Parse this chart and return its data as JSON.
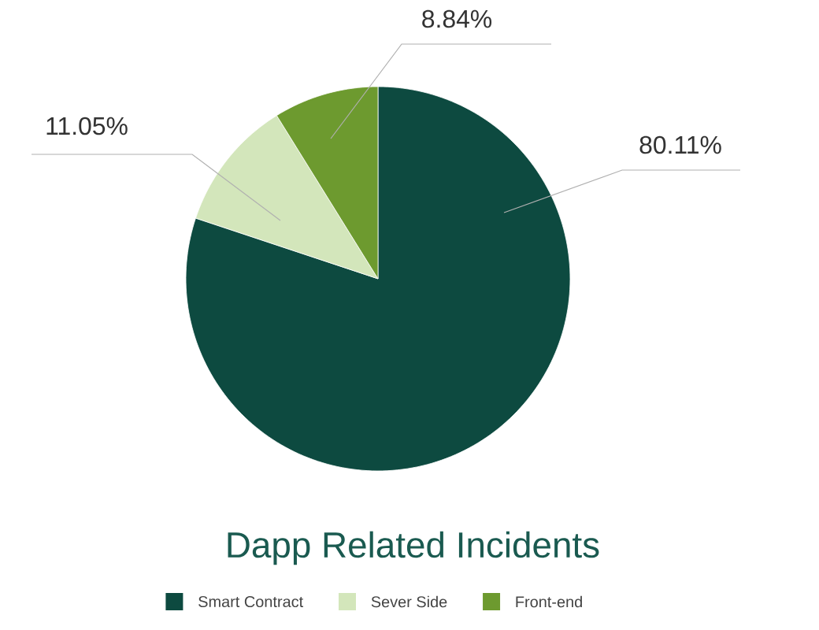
{
  "chart_data": {
    "type": "pie",
    "title": "Dapp Related Incidents",
    "categories": [
      "Smart Contract",
      "Sever Side",
      "Front-end"
    ],
    "values": [
      80.11,
      11.05,
      8.84
    ],
    "colors": [
      "#0d4a40",
      "#d3e6bb",
      "#6d9a2f"
    ],
    "value_labels": [
      "80.11%",
      "11.05%",
      "8.84%"
    ],
    "legend": "bottom"
  }
}
